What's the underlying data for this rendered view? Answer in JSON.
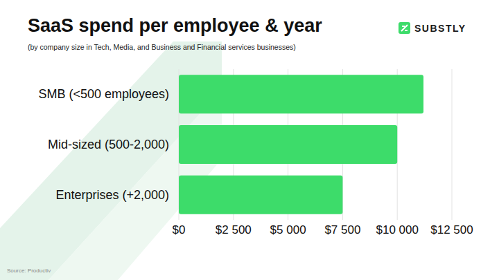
{
  "chart_data": {
    "type": "bar",
    "orientation": "horizontal",
    "title": "SaaS spend per employee & year",
    "subtitle": "(by company size in Tech, Media, and Business and Financial services businesses)",
    "source": "Source: Productiv",
    "brand": "SUBSTLY",
    "categories": [
      "SMB (<500 employees)",
      "Mid-sized (500-2,000)",
      "Enterprises (+2,000)"
    ],
    "values": [
      11200,
      10000,
      7500
    ],
    "color": "#3ddc6a",
    "xlim": [
      0,
      12500
    ],
    "xticks": [
      {
        "value": 0,
        "label": "$0"
      },
      {
        "value": 2500,
        "label": "$2 500"
      },
      {
        "value": 5000,
        "label": "$5 000"
      },
      {
        "value": 7500,
        "label": "$7 500"
      },
      {
        "value": 10000,
        "label": "$10 000"
      },
      {
        "value": 12500,
        "label": "$12 500"
      }
    ],
    "grid": true
  }
}
